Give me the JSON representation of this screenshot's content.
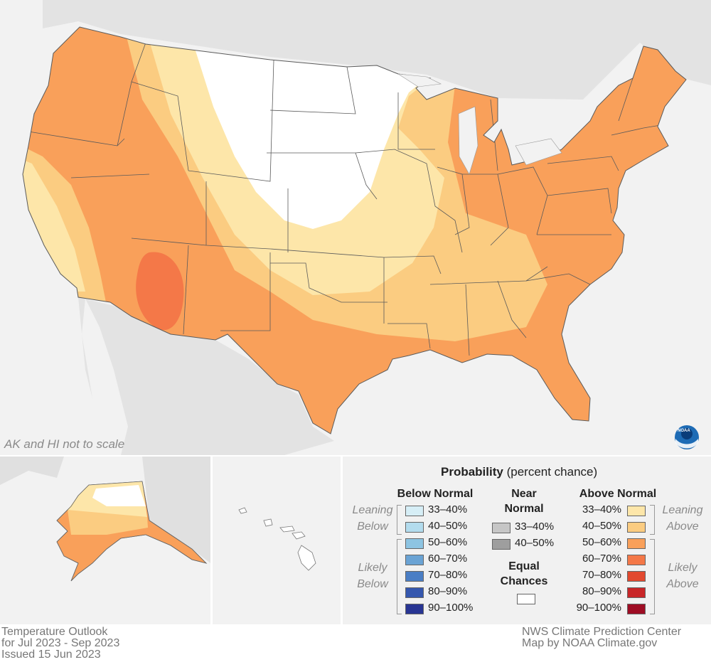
{
  "map": {
    "note": "AK and HI not to scale",
    "logo_text": "NOAA",
    "colors": {
      "background_land": "#e6e6e6",
      "ocean": "#f2f2f2",
      "equal_chances": "#ffffff",
      "above_33_40": "#fde6a9",
      "above_40_50": "#fbcc81",
      "above_50_60": "#f9a05a",
      "above_60_70": "#f47848"
    }
  },
  "legend": {
    "title": "Probability",
    "title_suffix": "(percent chance)",
    "below_heading": "Below Normal",
    "near_heading_line1": "Near",
    "near_heading_line2": "Normal",
    "above_heading": "Above Normal",
    "leaning_below_1": "Leaning",
    "leaning_below_2": "Below",
    "likely_below_1": "Likely",
    "likely_below_2": "Below",
    "leaning_above_1": "Leaning",
    "leaning_above_2": "Above",
    "likely_above_1": "Likely",
    "likely_above_2": "Above",
    "equal_1": "Equal",
    "equal_2": "Chances",
    "below": [
      {
        "label": "33–40%",
        "color": "#d6eef6"
      },
      {
        "label": "40–50%",
        "color": "#b3dcee"
      },
      {
        "label": "50–60%",
        "color": "#8dc4e2"
      },
      {
        "label": "60–70%",
        "color": "#6aa3d4"
      },
      {
        "label": "70–80%",
        "color": "#4a7ec5"
      },
      {
        "label": "80–90%",
        "color": "#3557ae"
      },
      {
        "label": "90–100%",
        "color": "#283593"
      }
    ],
    "near": [
      {
        "label": "33–40%",
        "color": "#c6c6c6"
      },
      {
        "label": "40–50%",
        "color": "#9e9e9e"
      }
    ],
    "above": [
      {
        "label": "33–40%",
        "color": "#fde6a9"
      },
      {
        "label": "40–50%",
        "color": "#fbcc81"
      },
      {
        "label": "50–60%",
        "color": "#f9a05a"
      },
      {
        "label": "60–70%",
        "color": "#f47848"
      },
      {
        "label": "70–80%",
        "color": "#e2492f"
      },
      {
        "label": "80–90%",
        "color": "#c82628"
      },
      {
        "label": "90–100%",
        "color": "#9e0d24"
      }
    ]
  },
  "footer": {
    "left_1": "Temperature Outlook",
    "left_2": "for Jul 2023 - Sep 2023",
    "left_3": "Issued 15 Jun 2023",
    "right_1": "NWS Climate Prediction Center",
    "right_2": "Map by NOAA Climate.gov"
  }
}
